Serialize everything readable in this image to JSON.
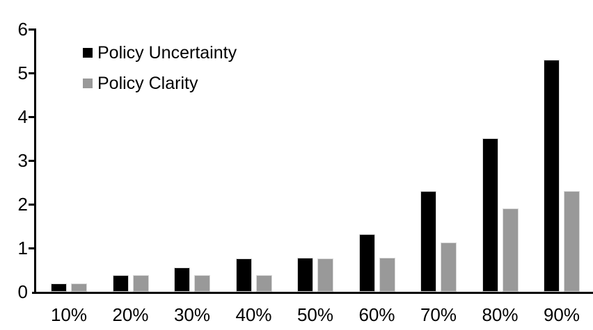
{
  "chart_data": {
    "type": "bar",
    "title": "",
    "xlabel": "",
    "ylabel": "",
    "categories": [
      "10%",
      "20%",
      "30%",
      "40%",
      "50%",
      "60%",
      "70%",
      "80%",
      "90%"
    ],
    "series": [
      {
        "name": "Policy Uncertainty",
        "color": "#000000",
        "values": [
          0.19,
          0.38,
          0.56,
          0.76,
          0.77,
          1.32,
          2.3,
          3.5,
          5.3
        ]
      },
      {
        "name": "Policy Clarity",
        "color": "#999999",
        "values": [
          0.19,
          0.38,
          0.38,
          0.38,
          0.76,
          0.77,
          1.13,
          1.9,
          2.3
        ]
      }
    ],
    "ylim": [
      0,
      6
    ],
    "yticks": [
      0,
      1,
      2,
      3,
      4,
      5,
      6
    ],
    "grid": false,
    "legend_position": "top-left-inside",
    "bar_border_color": "#d9d9d9",
    "axis_color": "#000000",
    "background_color": "#ffffff"
  }
}
